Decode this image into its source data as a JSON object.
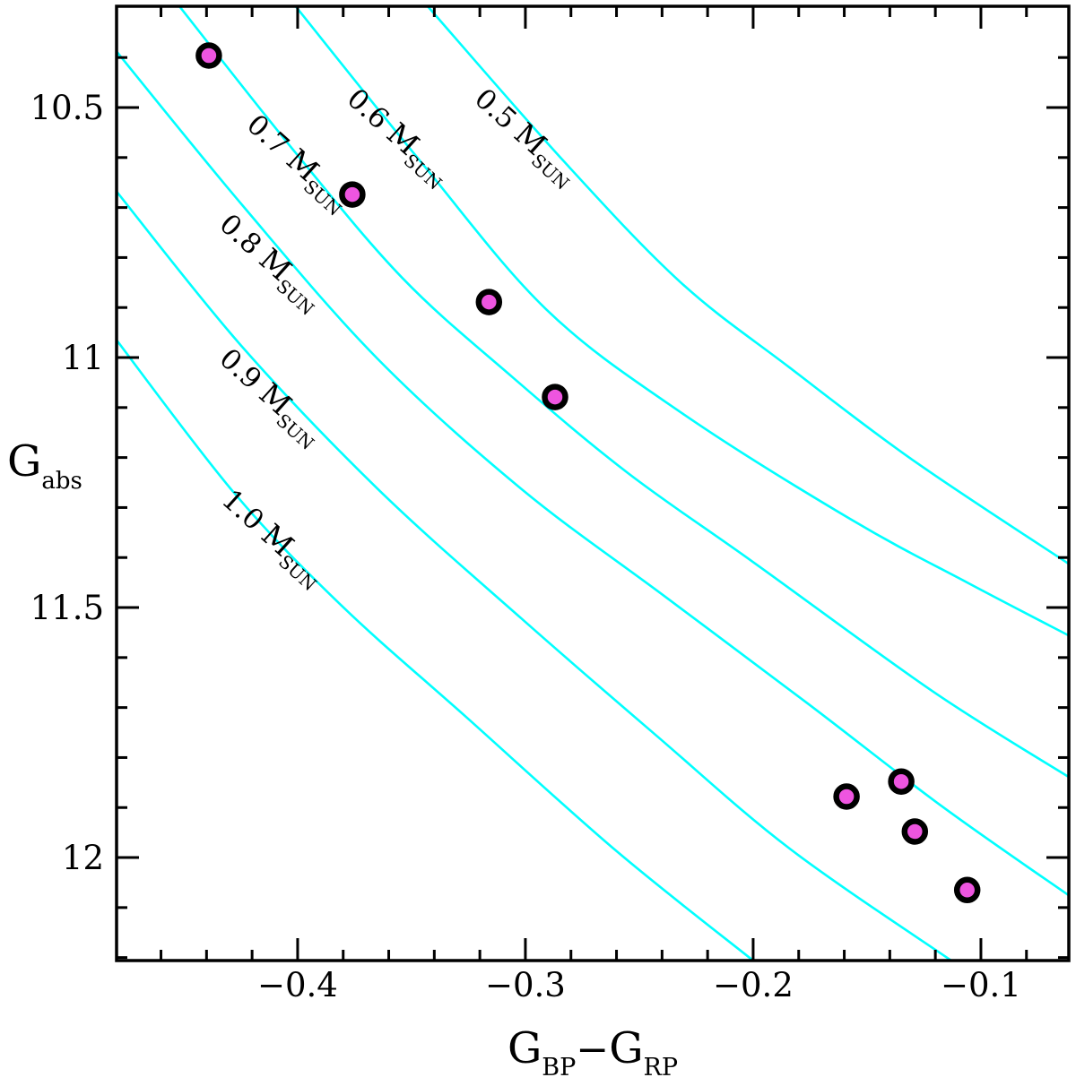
{
  "figure": {
    "background": "#ffffff",
    "frame_color": "#000000",
    "track_color": "#00ffff",
    "point_fill": "#ee55e0",
    "point_stroke": "#000000"
  },
  "chart_data": {
    "type": "scatter",
    "title": "",
    "xlabel_parts": {
      "g1": "G",
      "sub1": "BP",
      "minus": "−",
      "g2": "G",
      "sub2": "RP"
    },
    "ylabel_parts": {
      "g": "G",
      "sub": "abs"
    },
    "x_range": [
      -0.4795,
      -0.0614
    ],
    "y_range": [
      10.2975,
      12.206
    ],
    "y_axis_inverted_brighter_up": true,
    "grid": false,
    "x_ticks_major": [
      -0.4,
      -0.3,
      -0.2,
      -0.1
    ],
    "x_tick_labels": [
      "−0.4",
      "−0.3",
      "−0.2",
      "−0.1"
    ],
    "x_minor_start": -0.46,
    "x_minor_end": -0.08,
    "x_minor_step": 0.02,
    "y_ticks_major": [
      10.5,
      11.0,
      11.5,
      12.0
    ],
    "y_tick_labels": [
      "10.5",
      "11",
      "11.5",
      "12"
    ],
    "y_minor_start": 10.4,
    "y_minor_end": 12.2,
    "y_minor_step": 0.1,
    "points": [
      {
        "color": -0.439,
        "gabs": 10.396
      },
      {
        "color": -0.376,
        "gabs": 10.674
      },
      {
        "color": -0.316,
        "gabs": 10.889
      },
      {
        "color": -0.287,
        "gabs": 11.079
      },
      {
        "color": -0.159,
        "gabs": 11.878
      },
      {
        "color": -0.135,
        "gabs": 11.848
      },
      {
        "color": -0.129,
        "gabs": 11.948
      },
      {
        "color": -0.106,
        "gabs": 12.065
      }
    ],
    "tracks": [
      {
        "mass": "0.5",
        "label_prefix": "0.5 ",
        "label_main": "M",
        "label_sub": "SUN",
        "label_anchor": {
          "color": -0.323,
          "gabs": 10.487
        },
        "label_angle_deg": 42,
        "samples": [
          [
            -0.343,
            10.297
          ],
          [
            -0.283,
            10.608
          ],
          [
            -0.232,
            10.849
          ],
          [
            -0.184,
            11.02
          ],
          [
            -0.129,
            11.208
          ],
          [
            -0.061,
            11.414
          ]
        ]
      },
      {
        "mass": "0.6",
        "label_prefix": "0.6 ",
        "label_main": "M",
        "label_sub": "SUN",
        "label_anchor": {
          "color": -0.379,
          "gabs": 10.487
        },
        "label_angle_deg": 42,
        "samples": [
          [
            -0.401,
            10.297
          ],
          [
            -0.346,
            10.608
          ],
          [
            -0.291,
            10.903
          ],
          [
            -0.232,
            11.109
          ],
          [
            -0.157,
            11.324
          ],
          [
            -0.106,
            11.45
          ],
          [
            -0.061,
            11.557
          ]
        ]
      },
      {
        "mass": "0.7",
        "label_prefix": "0.7 ",
        "label_main": "M",
        "label_sub": "SUN",
        "label_anchor": {
          "color": -0.423,
          "gabs": 10.539
        },
        "label_angle_deg": 42,
        "samples": [
          [
            -0.452,
            10.297
          ],
          [
            -0.401,
            10.59
          ],
          [
            -0.354,
            10.841
          ],
          [
            -0.306,
            11.038
          ],
          [
            -0.255,
            11.231
          ],
          [
            -0.2,
            11.409
          ],
          [
            -0.121,
            11.668
          ],
          [
            -0.061,
            11.84
          ]
        ]
      },
      {
        "mass": "0.8",
        "label_prefix": "0.8 ",
        "label_main": "M",
        "label_sub": "SUN",
        "label_anchor": {
          "color": -0.435,
          "gabs": 10.738
        },
        "label_angle_deg": 42,
        "samples": [
          [
            -0.48,
            10.385
          ],
          [
            -0.424,
            10.697
          ],
          [
            -0.365,
            11.002
          ],
          [
            -0.302,
            11.262
          ],
          [
            -0.239,
            11.477
          ],
          [
            -0.176,
            11.692
          ],
          [
            -0.117,
            11.898
          ],
          [
            -0.061,
            12.077
          ]
        ]
      },
      {
        "mass": "0.9",
        "label_prefix": "0.9 ",
        "label_main": "M",
        "label_sub": "SUN",
        "label_anchor": {
          "color": -0.435,
          "gabs": 11.007
        },
        "label_angle_deg": 42,
        "samples": [
          [
            -0.48,
            10.665
          ],
          [
            -0.425,
            10.975
          ],
          [
            -0.365,
            11.262
          ],
          [
            -0.302,
            11.521
          ],
          [
            -0.243,
            11.754
          ],
          [
            -0.184,
            11.982
          ],
          [
            -0.113,
            12.206
          ]
        ]
      },
      {
        "mass": "1.0",
        "label_prefix": "1.0 ",
        "label_main": "M",
        "label_sub": "SUN",
        "label_anchor": {
          "color": -0.434,
          "gabs": 11.289
        },
        "label_angle_deg": 42,
        "samples": [
          [
            -0.48,
            10.962
          ],
          [
            -0.428,
            11.27
          ],
          [
            -0.381,
            11.495
          ],
          [
            -0.326,
            11.719
          ],
          [
            -0.26,
            11.987
          ],
          [
            -0.2,
            12.206
          ]
        ]
      }
    ]
  }
}
